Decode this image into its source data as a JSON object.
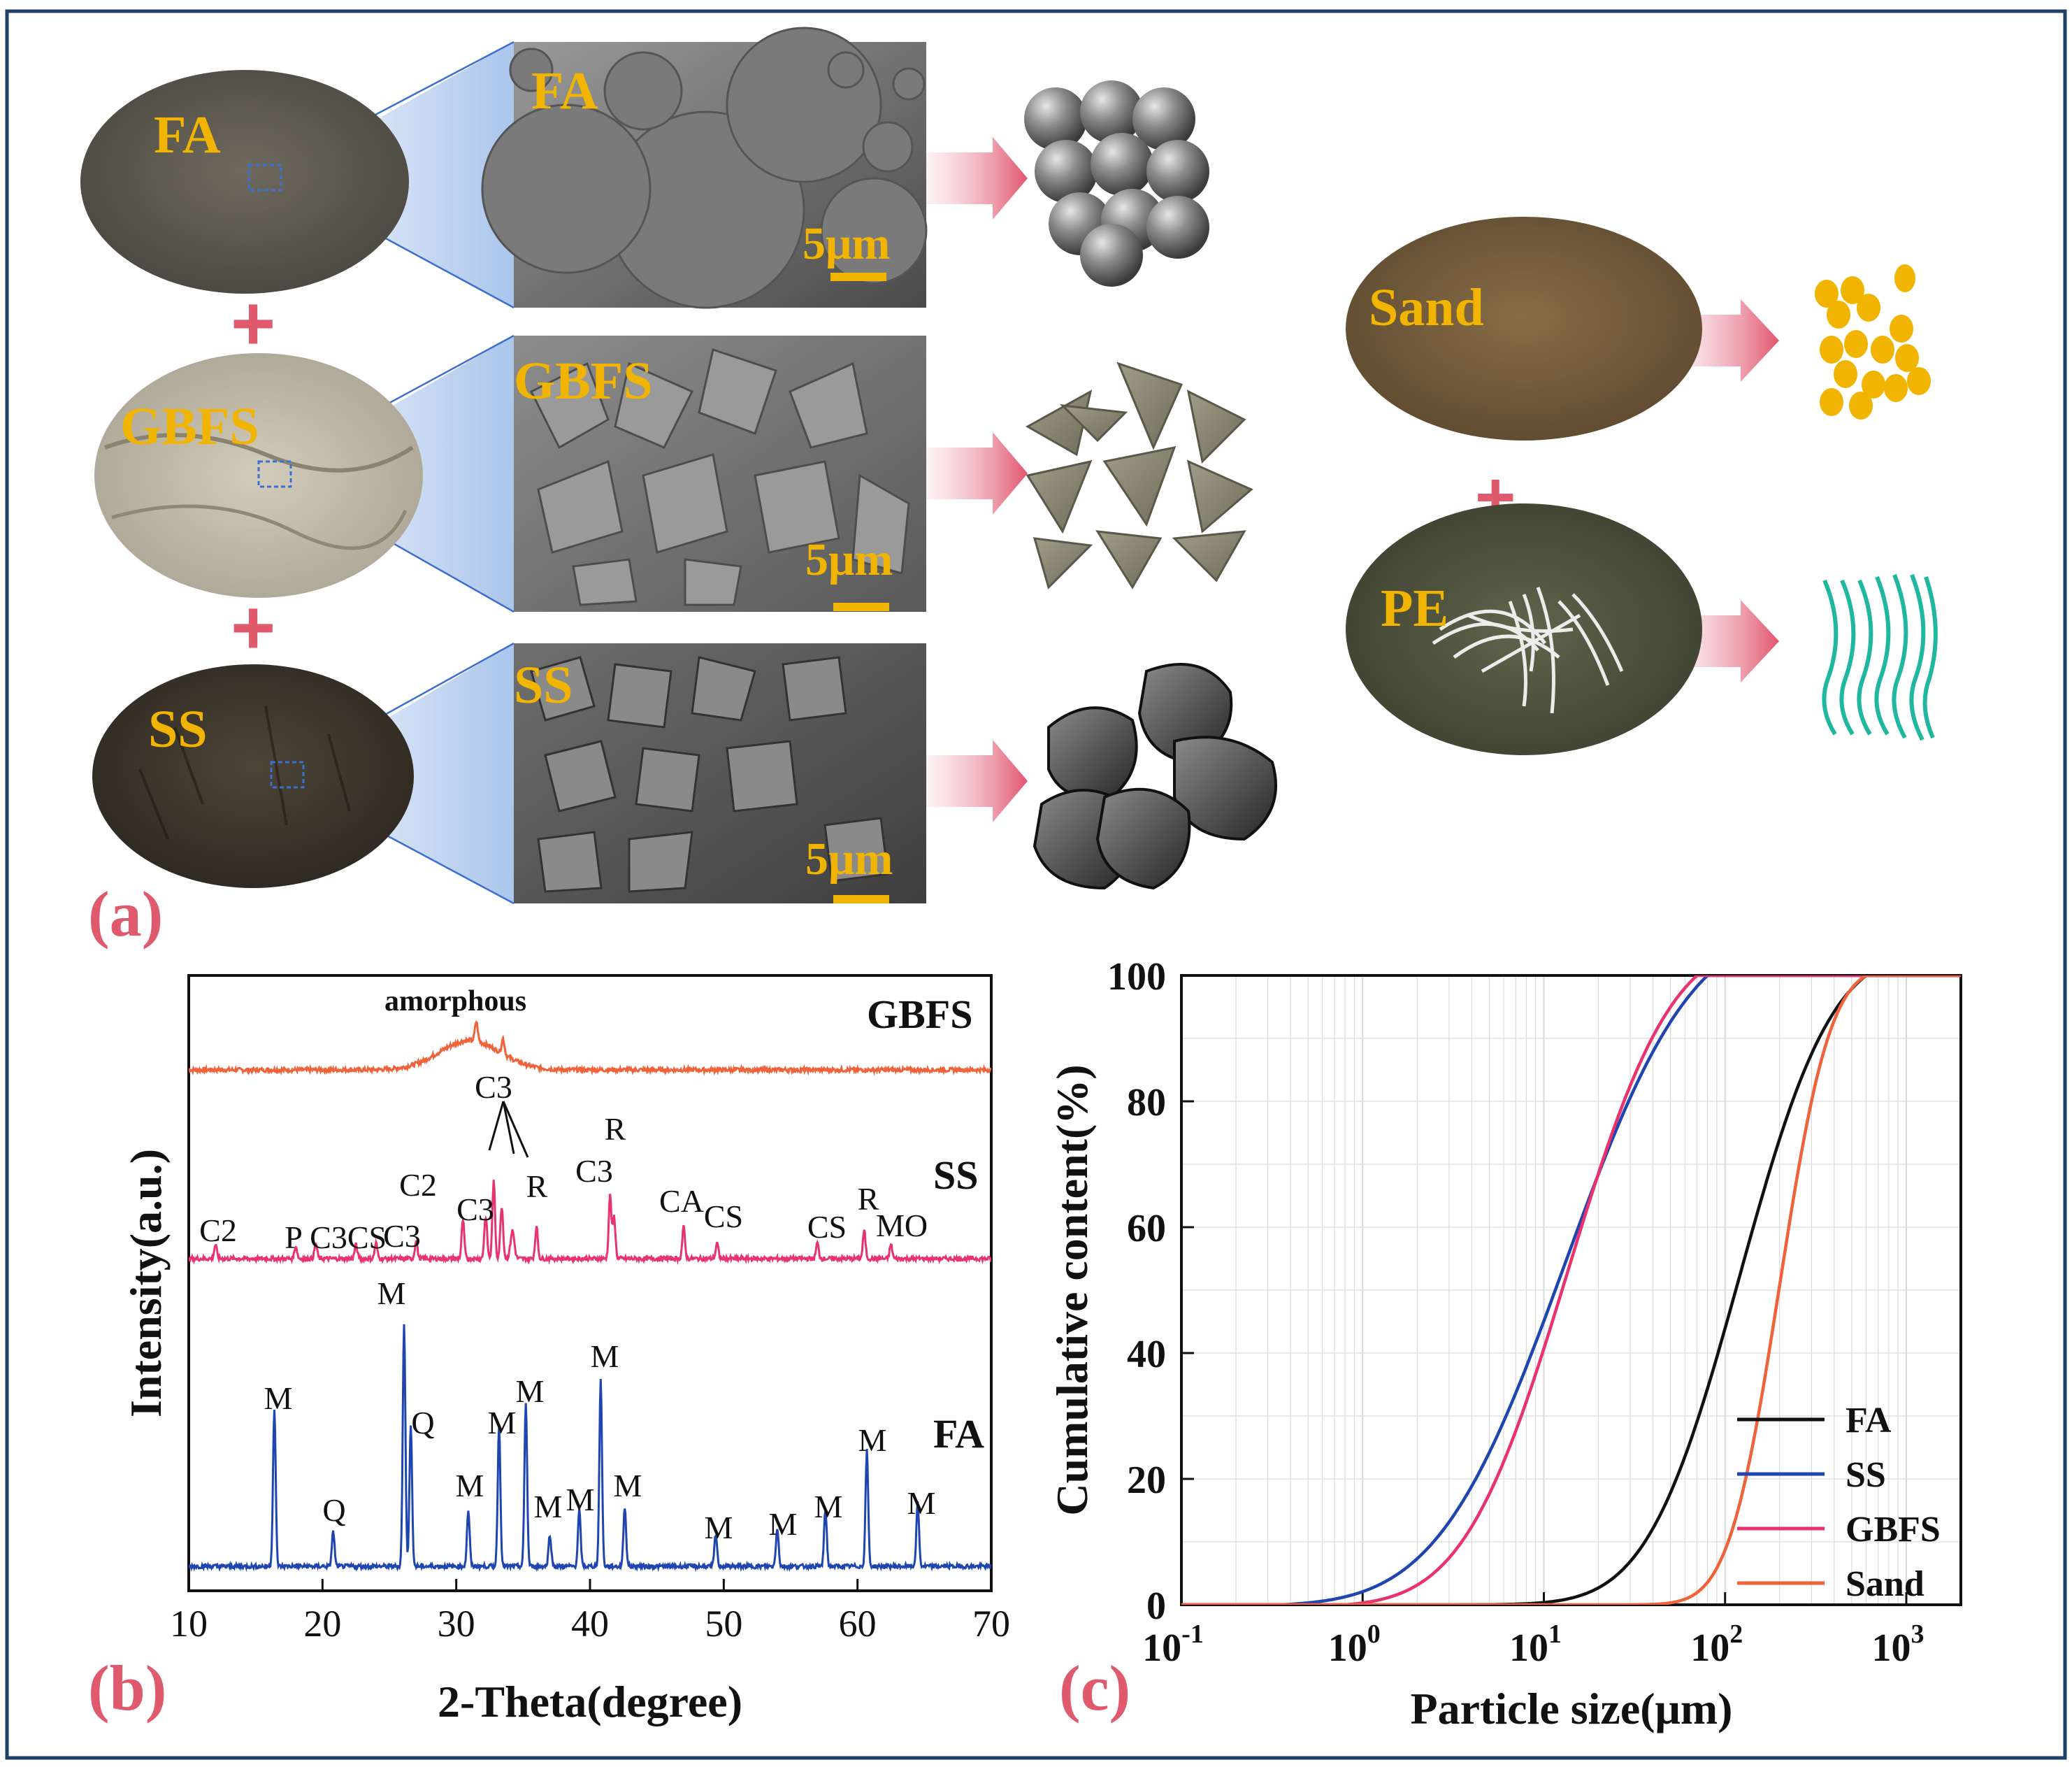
{
  "panel_a": {
    "label": "(a)",
    "binder": [
      {
        "name": "FA",
        "sem_label": "FA",
        "scale": "5μm"
      },
      {
        "name": "GBFS",
        "sem_label": "GBFS",
        "scale": "5μm"
      },
      {
        "name": "SS",
        "sem_label": "SS",
        "scale": "5μm"
      }
    ],
    "aggregate": [
      {
        "name": "Sand"
      },
      {
        "name": "PE"
      }
    ],
    "plus_sign": "+"
  },
  "panel_b": {
    "label": "(b)",
    "chart_data": {
      "type": "line",
      "xlabel": "2-Theta(degree)",
      "ylabel": "Intensity(a.u.)",
      "xlim": [
        10,
        70
      ],
      "xticks": [
        "10",
        "20",
        "30",
        "40",
        "50",
        "60",
        "70"
      ],
      "series": [
        {
          "name": "GBFS",
          "color": "#f0623a",
          "amorphous_label": "amorphous",
          "hump_center": 31,
          "peaks": []
        },
        {
          "name": "SS",
          "color": "#e8336e",
          "peaks": [
            {
              "x": 12.0,
              "label": "C2"
            },
            {
              "x": 18.0,
              "label": "P"
            },
            {
              "x": 19.5,
              "label": "C3"
            },
            {
              "x": 22.5,
              "label": "CS"
            },
            {
              "x": 24.0,
              "label": "C3"
            },
            {
              "x": 27.0,
              "label": "C2"
            },
            {
              "x": 30.5,
              "label": "C3"
            },
            {
              "x": 32.8,
              "label": "C3"
            },
            {
              "x": 36.0,
              "label": "R"
            },
            {
              "x": 41.5,
              "label": "C3"
            },
            {
              "x": 41.8,
              "label": "R"
            },
            {
              "x": 47.0,
              "label": "CA"
            },
            {
              "x": 49.5,
              "label": "CS"
            },
            {
              "x": 57.0,
              "label": "CS"
            },
            {
              "x": 60.5,
              "label": "R"
            },
            {
              "x": 62.5,
              "label": "MO"
            }
          ]
        },
        {
          "name": "FA",
          "color": "#1f45b0",
          "peaks": [
            {
              "x": 16.4,
              "label": "M"
            },
            {
              "x": 20.8,
              "label": "Q"
            },
            {
              "x": 26.1,
              "label": "M"
            },
            {
              "x": 26.6,
              "label": "Q"
            },
            {
              "x": 30.9,
              "label": "M"
            },
            {
              "x": 33.2,
              "label": "M"
            },
            {
              "x": 35.2,
              "label": "M"
            },
            {
              "x": 37.0,
              "label": "M"
            },
            {
              "x": 39.2,
              "label": "M"
            },
            {
              "x": 40.8,
              "label": "M"
            },
            {
              "x": 42.6,
              "label": "M"
            },
            {
              "x": 49.4,
              "label": "M"
            },
            {
              "x": 54.0,
              "label": "M"
            },
            {
              "x": 57.6,
              "label": "M"
            },
            {
              "x": 60.7,
              "label": "M"
            },
            {
              "x": 64.5,
              "label": "M"
            }
          ]
        }
      ]
    }
  },
  "panel_c": {
    "label": "(c)",
    "chart_data": {
      "type": "line",
      "xscale": "log",
      "xlabel": "Particle size(μm)",
      "ylabel": "Cumulative content(%)",
      "xlim": [
        0.1,
        2000
      ],
      "ylim": [
        0,
        100
      ],
      "xticks": [
        {
          "base": "10",
          "exp": "-1"
        },
        {
          "base": "10",
          "exp": "0"
        },
        {
          "base": "10",
          "exp": "1"
        },
        {
          "base": "10",
          "exp": "2"
        },
        {
          "base": "10",
          "exp": "3"
        }
      ],
      "yticks": [
        "0",
        "20",
        "40",
        "60",
        "80",
        "100"
      ],
      "legend_position": "bottom-right",
      "series": [
        {
          "name": "FA",
          "color": "#111111",
          "median_um": 120,
          "sigma": 0.4,
          "dmin_um": 0.9,
          "dmax_um": 600
        },
        {
          "name": "SS",
          "color": "#1f45b0",
          "median_um": 13,
          "sigma": 0.55,
          "dmin_um": 0.35,
          "dmax_um": 80
        },
        {
          "name": "GBFS",
          "color": "#e8336e",
          "median_um": 13.5,
          "sigma": 0.45,
          "dmin_um": 0.8,
          "dmax_um": 70
        },
        {
          "name": "Sand",
          "color": "#f0623a",
          "median_um": 200,
          "sigma": 0.22,
          "dmin_um": 2,
          "dmax_um": 600
        }
      ]
    }
  }
}
